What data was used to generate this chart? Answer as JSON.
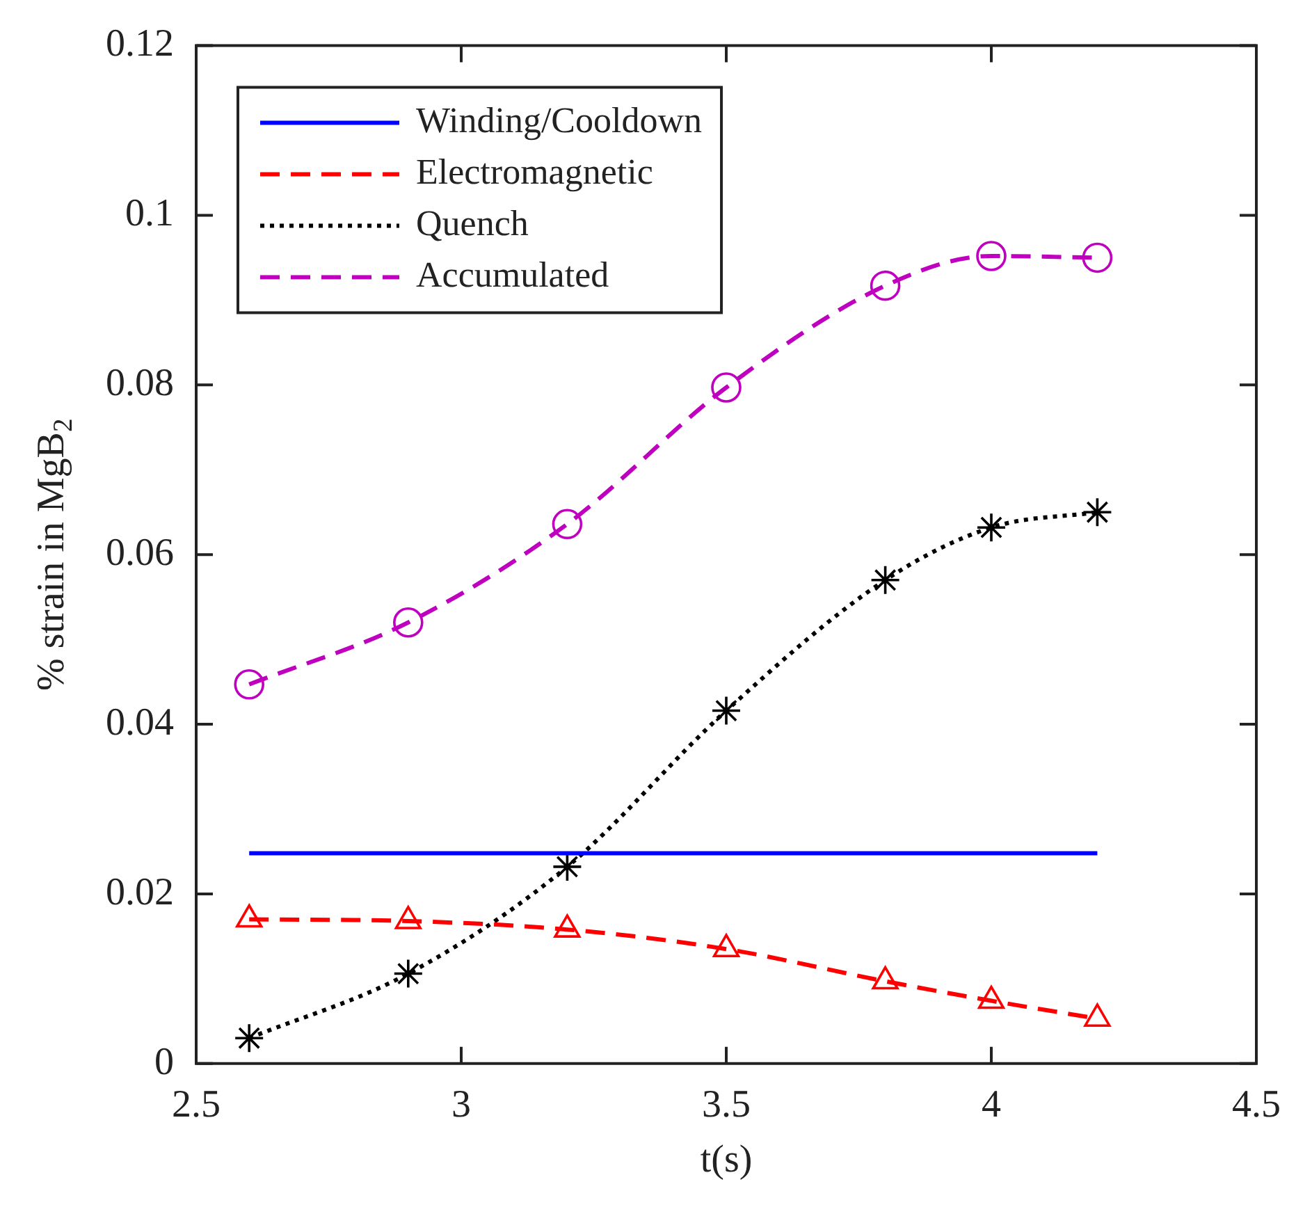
{
  "chart_data": {
    "type": "line",
    "xlabel": "t(s)",
    "ylabel": "% strain in MgB$_{2}$",
    "x": [
      2.6,
      2.9,
      3.2,
      3.5,
      3.8,
      4.0,
      4.2
    ],
    "series": [
      {
        "name": "Winding/Cooldown",
        "color": "#0000ff",
        "x": [
          2.6,
          4.2
        ],
        "values": [
          0.0248,
          0.0248
        ],
        "line_style": "solid",
        "marker": "none"
      },
      {
        "name": "Electromagnetic",
        "color": "#ff0000",
        "values": [
          0.017,
          0.0168,
          0.0158,
          0.0135,
          0.0097,
          0.0074,
          0.0053
        ],
        "line_style": "dashed",
        "marker": "triangle"
      },
      {
        "name": "Quench",
        "color": "#000000",
        "values": [
          0.003,
          0.0106,
          0.0232,
          0.0416,
          0.057,
          0.0632,
          0.065
        ],
        "line_style": "dotted",
        "marker": "cross"
      },
      {
        "name": "Accumulated",
        "color": "#bf00bf",
        "values": [
          0.0447,
          0.052,
          0.0636,
          0.0797,
          0.0917,
          0.0952,
          0.095
        ],
        "line_style": "dashed",
        "marker": "circle"
      }
    ],
    "xlim": [
      2.5,
      4.5
    ],
    "xticks": [
      2.5,
      3,
      3.5,
      4,
      4.5
    ],
    "ylim": [
      0,
      0.12
    ],
    "yticks": [
      0,
      0.02,
      0.04,
      0.06,
      0.08,
      0.1,
      0.12
    ],
    "grid": false,
    "legend": "top left"
  }
}
